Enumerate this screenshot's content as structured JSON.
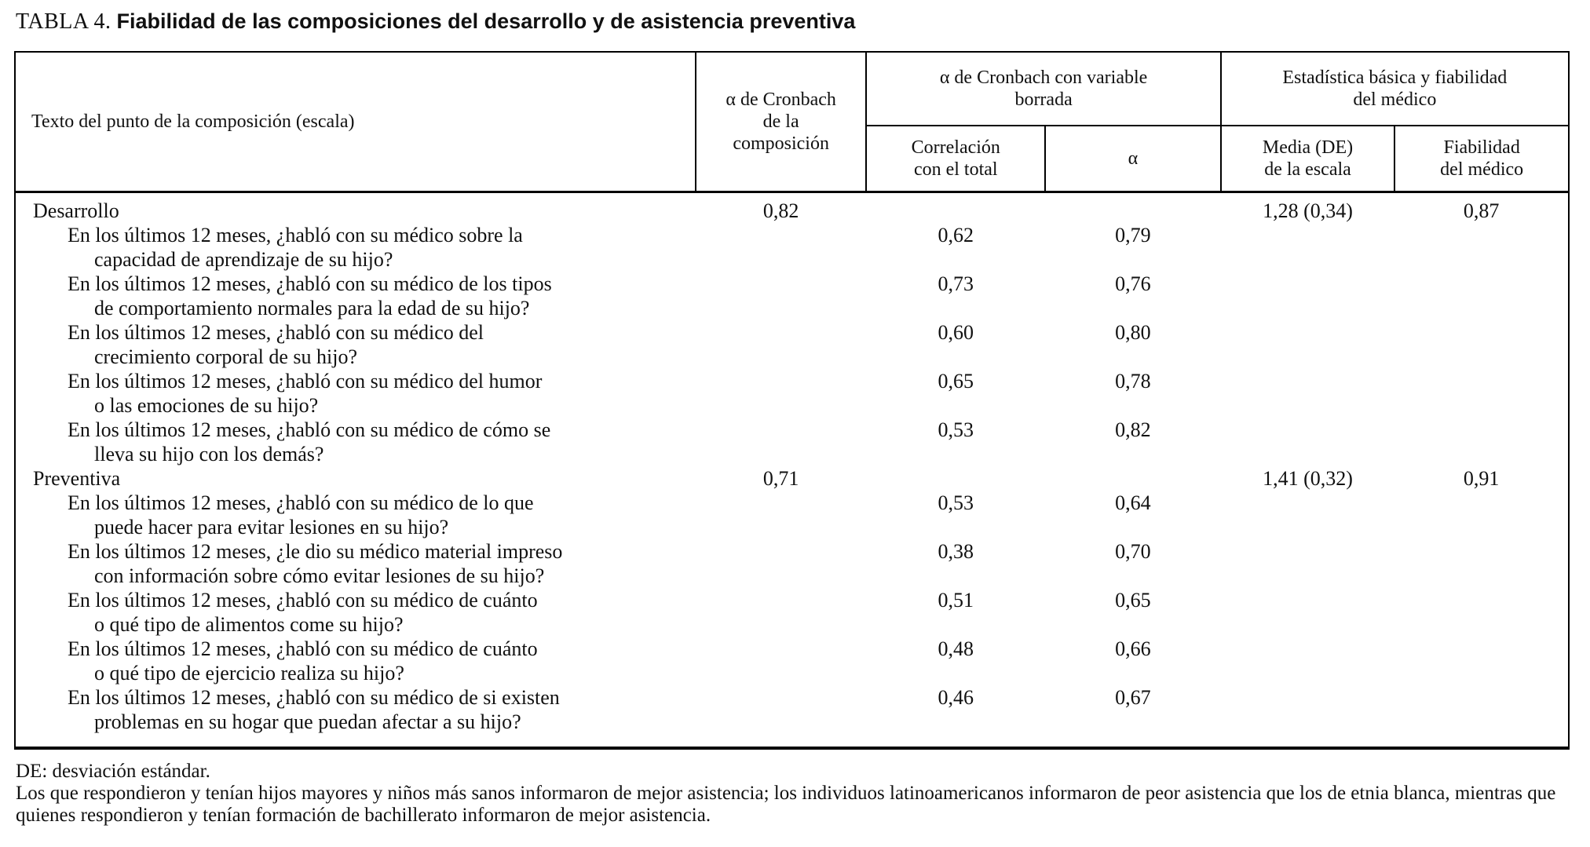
{
  "title": {
    "label": "TABLA 4.",
    "text": "Fiabilidad de las composiciones del desarrollo y de asistencia preventiva"
  },
  "table": {
    "headers": {
      "item": "Texto del punto de la composición (escala)",
      "alpha_composite": "α de Cronbach\nde la\ncomposición",
      "group_deleted": "α de Cronbach con variable\nborrada",
      "correlation_total": "Correlación\ncon el total",
      "alpha": "α",
      "group_stats": "Estadística básica y fiabilidad\ndel médico",
      "mean_sd": "Media (DE)\nde la escala",
      "physician_reliability": "Fiabilidad\ndel médico"
    },
    "rows": [
      {
        "type": "section",
        "text": "Desarrollo",
        "alpha_comp": "0,82",
        "corr": "",
        "alpha": "",
        "media": "1,28 (0,34)",
        "fiab": "0,87"
      },
      {
        "type": "item",
        "text": "En los últimos 12 meses, ¿habló con su médico sobre la\ncapacidad de aprendizaje de su hijo?",
        "alpha_comp": "",
        "corr": "0,62",
        "alpha": "0,79",
        "media": "",
        "fiab": ""
      },
      {
        "type": "item",
        "text": "En los últimos 12 meses, ¿habló con su médico de los tipos\nde comportamiento normales para la edad de su hijo?",
        "alpha_comp": "",
        "corr": "0,73",
        "alpha": "0,76",
        "media": "",
        "fiab": ""
      },
      {
        "type": "item",
        "text": "En los últimos 12 meses, ¿habló con su médico del\ncrecimiento corporal de su hijo?",
        "alpha_comp": "",
        "corr": "0,60",
        "alpha": "0,80",
        "media": "",
        "fiab": ""
      },
      {
        "type": "item",
        "text": "En los últimos 12 meses, ¿habló con su médico del humor\no las emociones de su hijo?",
        "alpha_comp": "",
        "corr": "0,65",
        "alpha": "0,78",
        "media": "",
        "fiab": ""
      },
      {
        "type": "item",
        "text": "En los últimos 12 meses, ¿habló con su médico de cómo se\nlleva su hijo con los demás?",
        "alpha_comp": "",
        "corr": "0,53",
        "alpha": "0,82",
        "media": "",
        "fiab": ""
      },
      {
        "type": "section",
        "text": "Preventiva",
        "alpha_comp": "0,71",
        "corr": "",
        "alpha": "",
        "media": "1,41 (0,32)",
        "fiab": "0,91"
      },
      {
        "type": "item",
        "text": "En los últimos 12 meses, ¿habló con su médico de lo que\npuede hacer para evitar lesiones en su hijo?",
        "alpha_comp": "",
        "corr": "0,53",
        "alpha": "0,64",
        "media": "",
        "fiab": ""
      },
      {
        "type": "item",
        "text": "En los últimos 12 meses, ¿le dio su médico material impreso\ncon información sobre cómo evitar lesiones de su hijo?",
        "alpha_comp": "",
        "corr": "0,38",
        "alpha": "0,70",
        "media": "",
        "fiab": ""
      },
      {
        "type": "item",
        "text": "En los últimos 12 meses, ¿habló con su médico de cuánto\no qué tipo de alimentos come su hijo?",
        "alpha_comp": "",
        "corr": "0,51",
        "alpha": "0,65",
        "media": "",
        "fiab": ""
      },
      {
        "type": "item",
        "text": "En los últimos 12 meses, ¿habló con su médico de cuánto\no qué tipo de ejercicio realiza su hijo?",
        "alpha_comp": "",
        "corr": "0,48",
        "alpha": "0,66",
        "media": "",
        "fiab": ""
      },
      {
        "type": "item",
        "text": "En los últimos 12 meses, ¿habló con su médico de si existen\nproblemas en su hogar que puedan afectar a su hijo?",
        "alpha_comp": "",
        "corr": "0,46",
        "alpha": "0,67",
        "media": "",
        "fiab": ""
      }
    ]
  },
  "footnotes": [
    "DE: desviación estándar.",
    "Los que respondieron y tenían hijos mayores y niños más sanos informaron de mejor asistencia; los individuos latinoamericanos informaron de peor asistencia que los de etnia blanca, mientras que quienes respondieron y tenían formación de bachillerato informaron de mejor asistencia."
  ]
}
